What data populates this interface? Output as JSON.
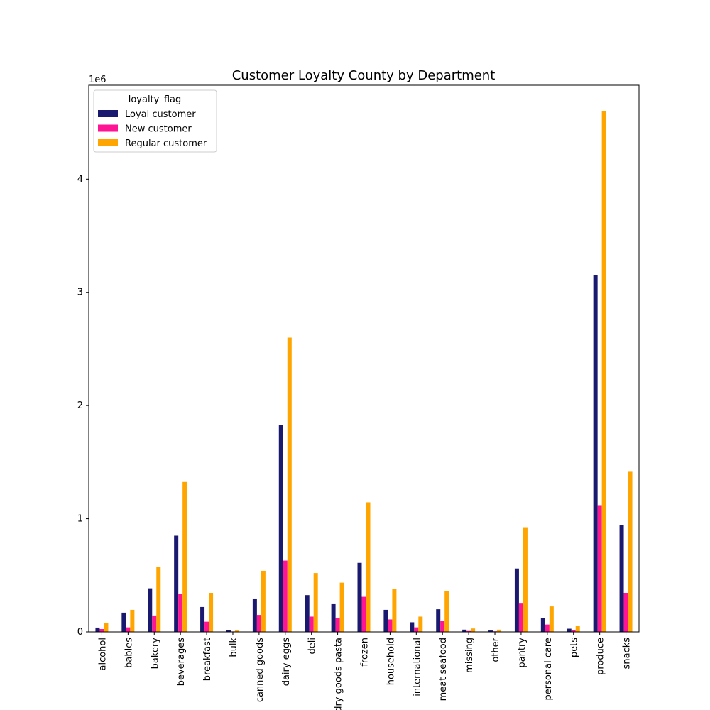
{
  "chart_data": {
    "type": "bar",
    "title": "Customer Loyalty County by Department",
    "xlabel": "",
    "ylabel": "",
    "y_scale_label": "1e6",
    "ylim": [
      0,
      4830000
    ],
    "y_ticks": [
      0,
      1000000,
      2000000,
      3000000,
      4000000
    ],
    "y_tick_labels": [
      "0",
      "1",
      "2",
      "3",
      "4"
    ],
    "legend_title": "loyalty_flag",
    "legend_position": "top-left",
    "grid": false,
    "categories": [
      "alcohol",
      "babies",
      "bakery",
      "beverages",
      "breakfast",
      "bulk",
      "canned goods",
      "dairy eggs",
      "deli",
      "dry goods pasta",
      "frozen",
      "household",
      "international",
      "meat seafood",
      "missing",
      "other",
      "pantry",
      "personal care",
      "pets",
      "produce",
      "snacks"
    ],
    "series": [
      {
        "name": "Loyal customer",
        "color": "#191970",
        "values": [
          38000,
          170000,
          385000,
          850000,
          220000,
          15000,
          295000,
          1830000,
          325000,
          245000,
          610000,
          195000,
          85000,
          200000,
          20000,
          12000,
          560000,
          125000,
          28000,
          3150000,
          945000
        ]
      },
      {
        "name": "New customer",
        "color": "#ff1493",
        "values": [
          25000,
          40000,
          145000,
          335000,
          90000,
          4000,
          150000,
          630000,
          135000,
          120000,
          310000,
          110000,
          40000,
          95000,
          8000,
          5000,
          250000,
          65000,
          15000,
          1120000,
          345000
        ]
      },
      {
        "name": "Regular customer",
        "color": "#ffa500",
        "values": [
          78000,
          195000,
          575000,
          1325000,
          345000,
          12000,
          540000,
          2600000,
          520000,
          435000,
          1145000,
          380000,
          135000,
          360000,
          30000,
          20000,
          925000,
          225000,
          50000,
          4600000,
          1415000
        ]
      }
    ]
  }
}
